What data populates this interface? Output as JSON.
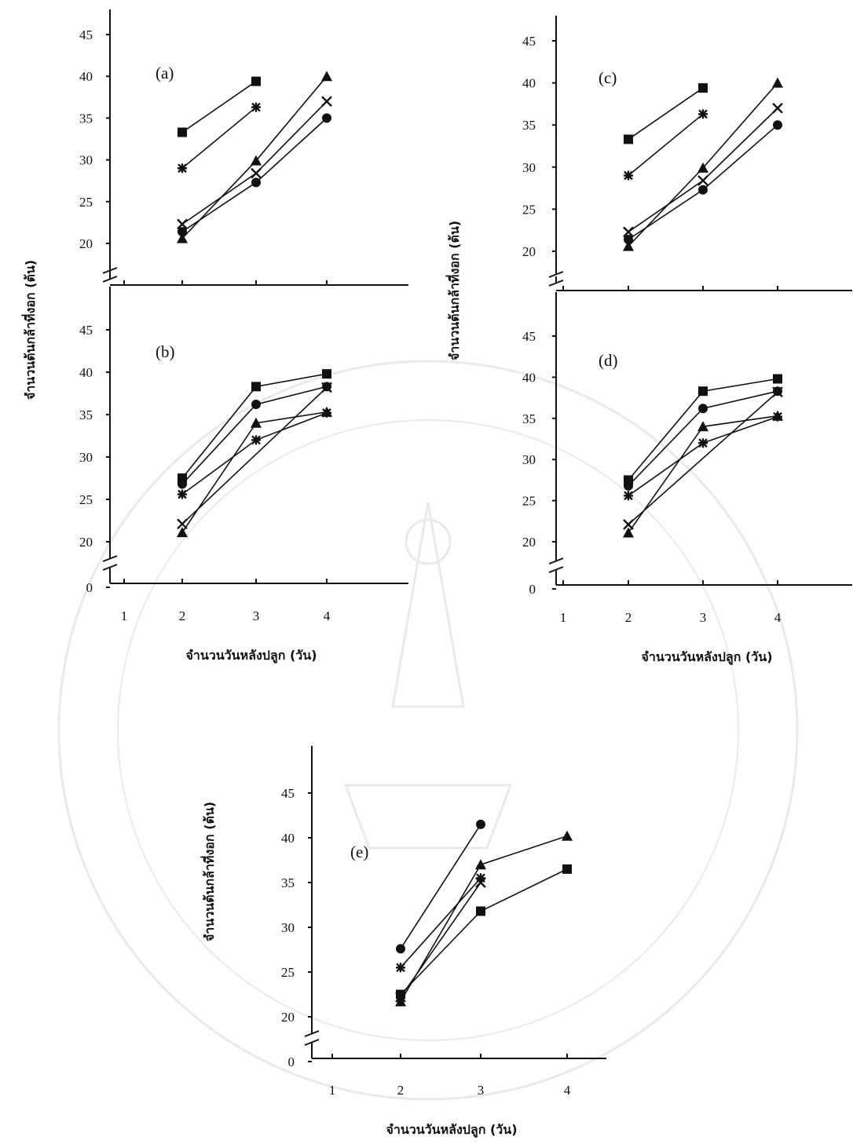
{
  "figure": {
    "left_ylabel": "จำนวนต้นกล้าที่งอก (ต้น)",
    "xlabel": "จำนวนวันหลังปลูก (วัน)"
  },
  "chart_data": [
    {
      "panel": "(a)",
      "type": "line",
      "x": [
        1,
        2,
        3,
        4
      ],
      "xlim": [
        1,
        4
      ],
      "y_ticks": [
        20,
        25,
        30,
        35,
        40,
        45
      ],
      "ylim": [
        18,
        45
      ],
      "y_axis_break": true,
      "series": [
        {
          "marker": "square",
          "points": [
            [
              2,
              33.3
            ],
            [
              3,
              39.4
            ]
          ]
        },
        {
          "marker": "asterisk",
          "points": [
            [
              2,
              29.0
            ],
            [
              3,
              36.3
            ]
          ]
        },
        {
          "marker": "triangle",
          "points": [
            [
              2,
              20.6
            ],
            [
              3,
              29.9
            ],
            [
              4,
              40.0
            ]
          ]
        },
        {
          "marker": "x",
          "points": [
            [
              2,
              22.3
            ],
            [
              3,
              28.4
            ],
            [
              4,
              37.0
            ]
          ]
        },
        {
          "marker": "circle",
          "points": [
            [
              2,
              21.4
            ],
            [
              3,
              27.3
            ],
            [
              4,
              35.0
            ]
          ]
        }
      ]
    },
    {
      "panel": "(b)",
      "type": "line",
      "x": [
        1,
        2,
        3,
        4
      ],
      "xlim": [
        1,
        4
      ],
      "y_ticks": [
        0,
        20,
        25,
        30,
        35,
        40,
        45
      ],
      "ylim": [
        18,
        45
      ],
      "y_axis_break": true,
      "series": [
        {
          "marker": "square",
          "points": [
            [
              2,
              27.5
            ],
            [
              3,
              38.3
            ],
            [
              4,
              39.8
            ]
          ]
        },
        {
          "marker": "circle",
          "points": [
            [
              2,
              26.8
            ],
            [
              3,
              36.2
            ],
            [
              4,
              38.3
            ]
          ]
        },
        {
          "marker": "asterisk",
          "points": [
            [
              2,
              25.6
            ],
            [
              3,
              32.0
            ],
            [
              4,
              35.2
            ]
          ]
        },
        {
          "marker": "triangle",
          "points": [
            [
              2,
              21.1
            ],
            [
              3,
              34.0
            ],
            [
              4,
              35.3
            ]
          ]
        },
        {
          "marker": "x",
          "points": [
            [
              2,
              22.1
            ],
            [
              4,
              38.2
            ]
          ]
        }
      ]
    },
    {
      "panel": "(c)",
      "type": "line",
      "x": [
        1,
        2,
        3,
        4
      ],
      "xlim": [
        1,
        4
      ],
      "y_ticks": [
        20,
        25,
        30,
        35,
        40,
        45
      ],
      "ylim": [
        18,
        45
      ],
      "y_axis_break": true,
      "series": [
        {
          "marker": "square",
          "points": [
            [
              2,
              33.3
            ],
            [
              3,
              39.4
            ]
          ]
        },
        {
          "marker": "asterisk",
          "points": [
            [
              2,
              29.0
            ],
            [
              3,
              36.3
            ]
          ]
        },
        {
          "marker": "triangle",
          "points": [
            [
              2,
              20.6
            ],
            [
              3,
              29.9
            ],
            [
              4,
              40.0
            ]
          ]
        },
        {
          "marker": "x",
          "points": [
            [
              2,
              22.3
            ],
            [
              3,
              28.4
            ],
            [
              4,
              37.0
            ]
          ]
        },
        {
          "marker": "circle",
          "points": [
            [
              2,
              21.4
            ],
            [
              3,
              27.3
            ],
            [
              4,
              35.0
            ]
          ]
        }
      ]
    },
    {
      "panel": "(d)",
      "type": "line",
      "x": [
        1,
        2,
        3,
        4
      ],
      "xlim": [
        1,
        4
      ],
      "y_ticks": [
        0,
        20,
        25,
        30,
        35,
        40,
        45
      ],
      "ylim": [
        18,
        45
      ],
      "y_axis_break": true,
      "series": [
        {
          "marker": "square",
          "points": [
            [
              2,
              27.5
            ],
            [
              3,
              38.3
            ],
            [
              4,
              39.8
            ]
          ]
        },
        {
          "marker": "circle",
          "points": [
            [
              2,
              26.8
            ],
            [
              3,
              36.2
            ],
            [
              4,
              38.3
            ]
          ]
        },
        {
          "marker": "asterisk",
          "points": [
            [
              2,
              25.6
            ],
            [
              3,
              32.0
            ],
            [
              4,
              35.2
            ]
          ]
        },
        {
          "marker": "triangle",
          "points": [
            [
              2,
              21.1
            ],
            [
              3,
              34.0
            ],
            [
              4,
              35.3
            ]
          ]
        },
        {
          "marker": "x",
          "points": [
            [
              2,
              22.1
            ],
            [
              4,
              38.2
            ]
          ]
        }
      ]
    },
    {
      "panel": "(e)",
      "type": "line",
      "x": [
        1,
        2,
        3,
        4
      ],
      "xlim": [
        1,
        4
      ],
      "y_ticks": [
        0,
        20,
        25,
        30,
        35,
        40,
        45
      ],
      "ylim": [
        18,
        45
      ],
      "y_axis_break": true,
      "ylabel": "จำนวนต้นกล้าที่งอก (ต้น)",
      "xlabel": "จำนวนวันหลังปลูก (วัน)",
      "series": [
        {
          "marker": "circle",
          "points": [
            [
              2,
              27.6
            ],
            [
              3,
              41.5
            ]
          ]
        },
        {
          "marker": "asterisk",
          "points": [
            [
              2,
              25.5
            ],
            [
              3,
              35.5
            ]
          ]
        },
        {
          "marker": "triangle",
          "points": [
            [
              2,
              21.7
            ],
            [
              3,
              37.0
            ],
            [
              4,
              40.2
            ]
          ]
        },
        {
          "marker": "x",
          "points": [
            [
              2,
              22.2
            ],
            [
              3,
              35.0
            ]
          ]
        },
        {
          "marker": "square",
          "points": [
            [
              2,
              22.5
            ],
            [
              3,
              31.8
            ],
            [
              4,
              36.5
            ]
          ]
        }
      ]
    }
  ]
}
